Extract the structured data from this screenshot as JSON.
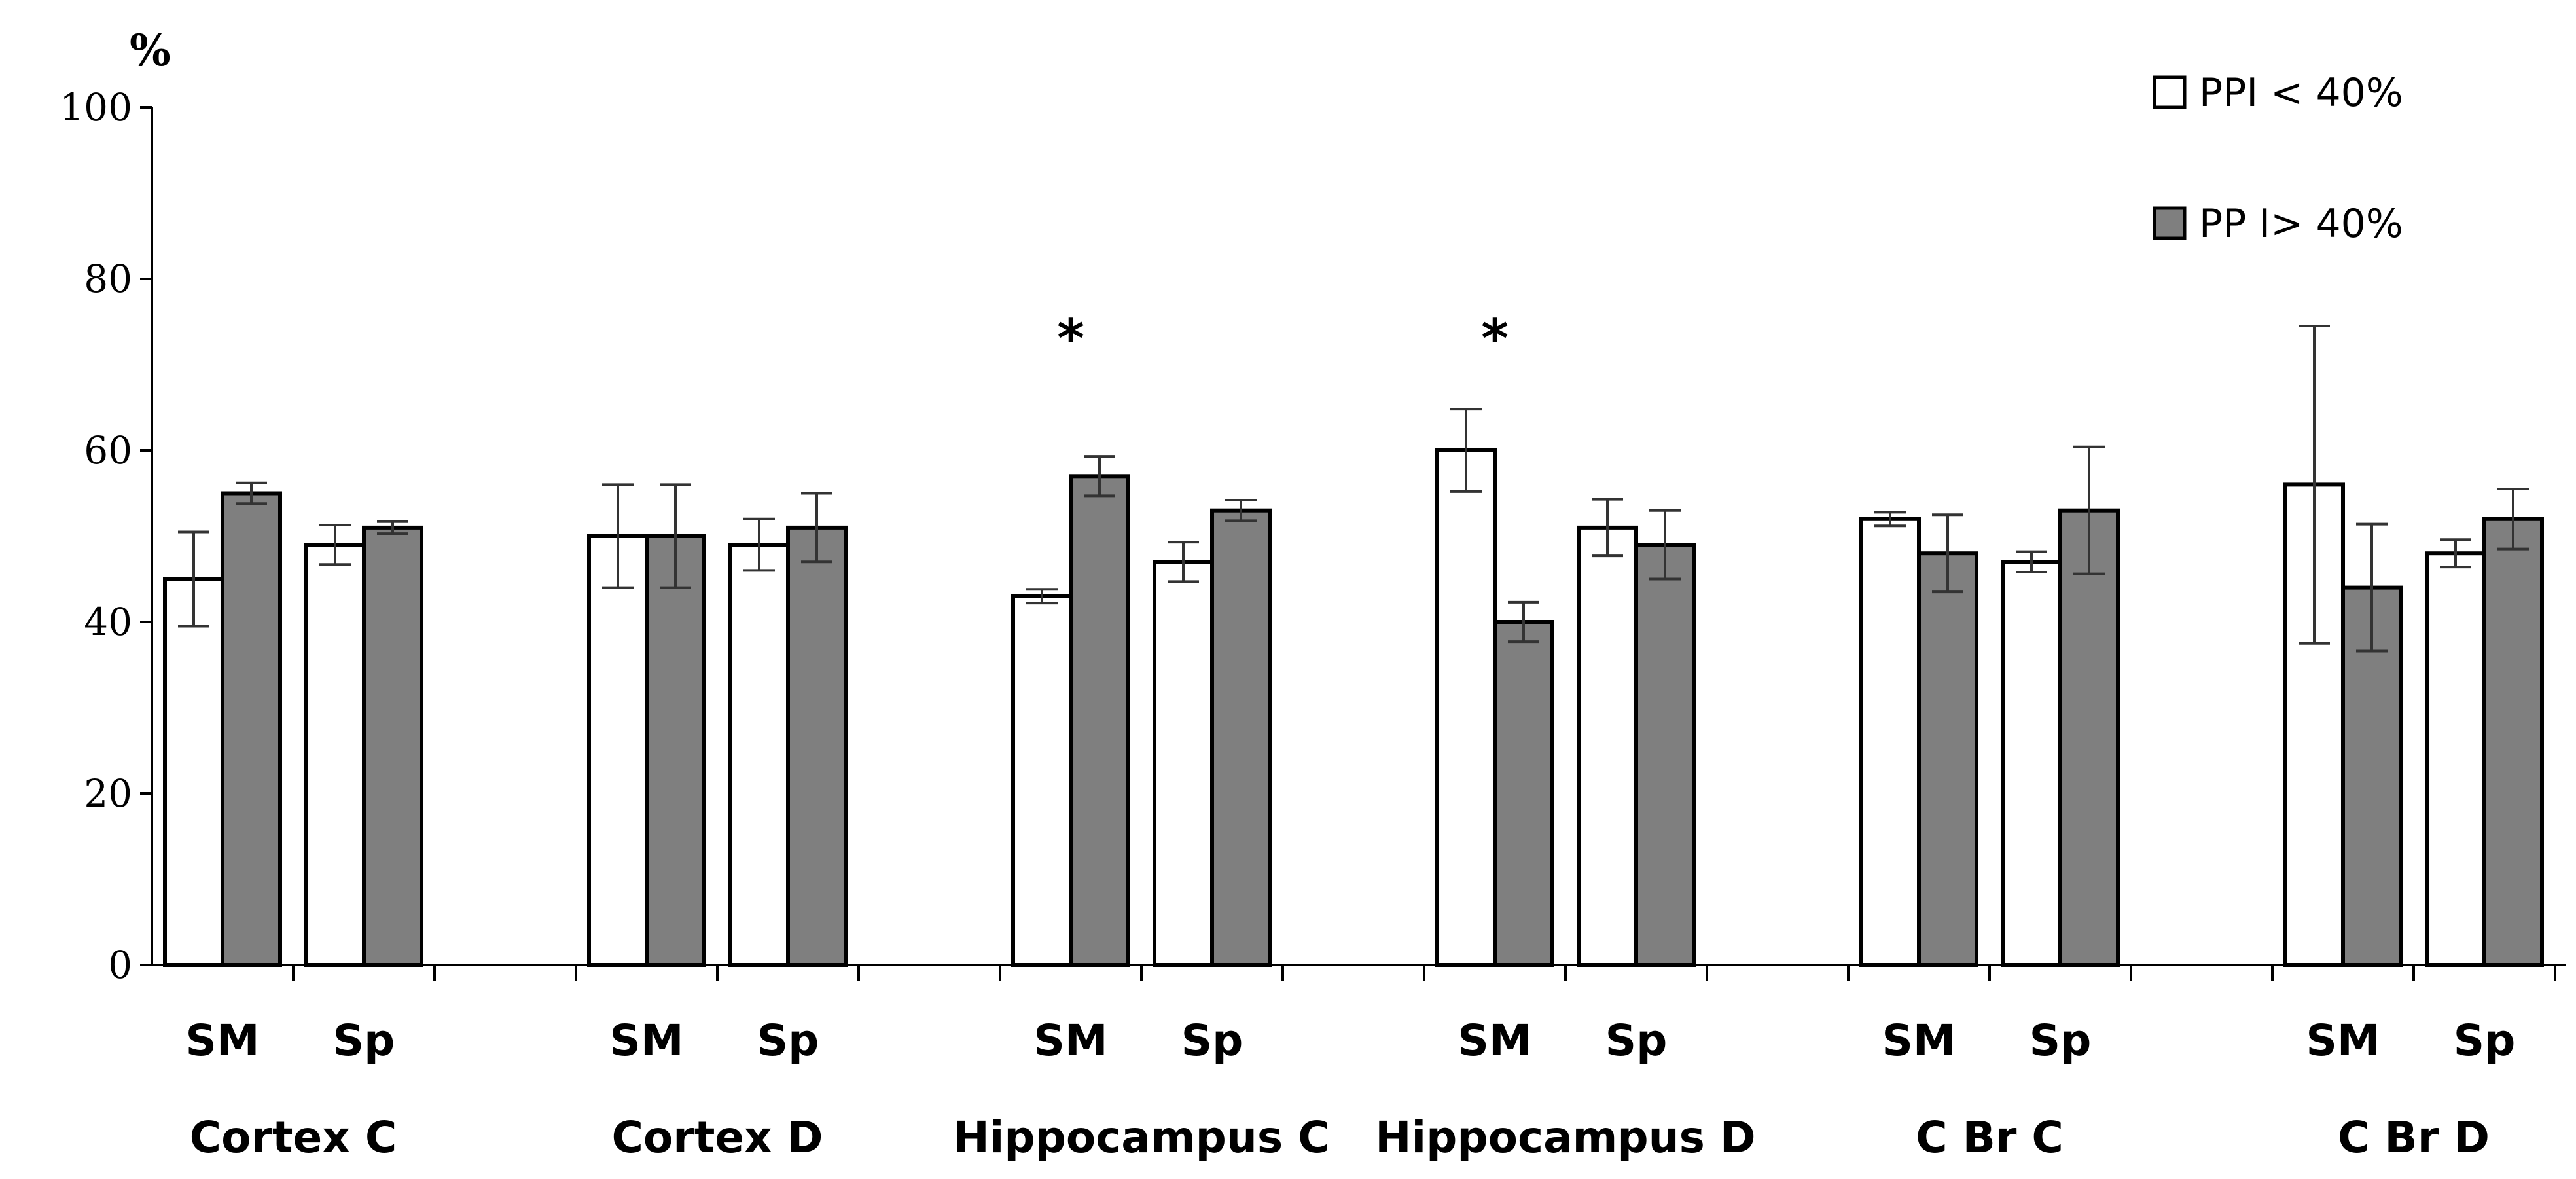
{
  "chart_data": {
    "type": "bar",
    "title": "",
    "ylabel": "%",
    "ylim": [
      0,
      100
    ],
    "yticks": [
      0,
      20,
      40,
      60,
      80,
      100
    ],
    "subcategory_labels": [
      "SM",
      "Sp"
    ],
    "groups": [
      {
        "label": "Cortex  C",
        "bars": [
          {
            "sub": "SM",
            "values": [
              45,
              55
            ],
            "errors": [
              5.5,
              1.2
            ]
          },
          {
            "sub": "Sp",
            "values": [
              49,
              51
            ],
            "errors": [
              2.3,
              0.7
            ]
          }
        ]
      },
      {
        "label": "Cortex  D",
        "bars": [
          {
            "sub": "SM",
            "values": [
              50,
              50
            ],
            "errors": [
              6,
              6
            ]
          },
          {
            "sub": "Sp",
            "values": [
              49,
              51
            ],
            "errors": [
              3,
              4
            ]
          }
        ]
      },
      {
        "label": "Hippocampus C",
        "bars": [
          {
            "sub": "SM",
            "values": [
              43,
              57
            ],
            "errors": [
              0.8,
              2.3
            ],
            "annotation": "*"
          },
          {
            "sub": "Sp",
            "values": [
              47,
              53
            ],
            "errors": [
              2.3,
              1.2
            ]
          }
        ]
      },
      {
        "label": "Hippocampus  D",
        "bars": [
          {
            "sub": "SM",
            "values": [
              60,
              40
            ],
            "errors": [
              4.8,
              2.3
            ],
            "annotation": "*"
          },
          {
            "sub": "Sp",
            "values": [
              51,
              49
            ],
            "errors": [
              3.3,
              4
            ]
          }
        ]
      },
      {
        "label": "C Br C",
        "bars": [
          {
            "sub": "SM",
            "values": [
              52,
              48
            ],
            "errors": [
              0.8,
              4.5
            ]
          },
          {
            "sub": "Sp",
            "values": [
              47,
              53
            ],
            "errors": [
              1.2,
              7.4
            ]
          }
        ]
      },
      {
        "label": "C Br D",
        "bars": [
          {
            "sub": "SM",
            "values": [
              56,
              44
            ],
            "errors": [
              18.5,
              7.4
            ]
          },
          {
            "sub": "Sp",
            "values": [
              48,
              52
            ],
            "errors": [
              1.6,
              3.5
            ]
          }
        ]
      }
    ],
    "series": [
      {
        "name": "PPI < 40%",
        "color": "#ffffff"
      },
      {
        "name": "PP I> 40%",
        "color": "#7f7f7f"
      }
    ],
    "legend_position": "top-right",
    "grid": false
  }
}
